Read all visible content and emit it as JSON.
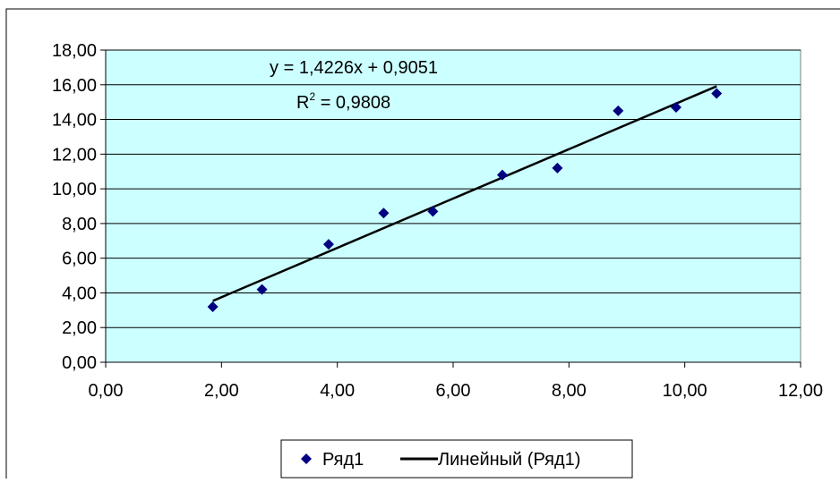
{
  "chart_data": {
    "type": "scatter",
    "title": "",
    "xlabel": "",
    "ylabel": "",
    "xlim": [
      0,
      12
    ],
    "ylim": [
      0,
      18
    ],
    "x_ticks": [
      "0,00",
      "2,00",
      "4,00",
      "6,00",
      "8,00",
      "10,00",
      "12,00"
    ],
    "y_ticks": [
      "0,00",
      "2,00",
      "4,00",
      "6,00",
      "8,00",
      "10,00",
      "12,00",
      "14,00",
      "16,00",
      "18,00"
    ],
    "grid": "horizontal",
    "background": "#ccffff",
    "series": [
      {
        "name": "Ряд1",
        "marker": "diamond",
        "color": "#000080",
        "x": [
          1.85,
          2.7,
          3.85,
          4.8,
          5.65,
          6.85,
          7.8,
          8.85,
          9.85,
          10.55
        ],
        "y": [
          3.2,
          4.2,
          6.8,
          8.6,
          8.7,
          10.8,
          11.2,
          14.5,
          14.7,
          15.5
        ]
      }
    ],
    "trendline": {
      "name": "Линейный (Ряд1)",
      "color": "#000000",
      "slope": 1.4226,
      "intercept": 0.9051,
      "x_range": [
        1.85,
        10.55
      ],
      "equation_label": "y = 1,4226x + 0,9051",
      "r2_label": "R",
      "r2_sup": "2",
      "r2_value": " = 0,9808"
    },
    "legend_position": "bottom"
  }
}
